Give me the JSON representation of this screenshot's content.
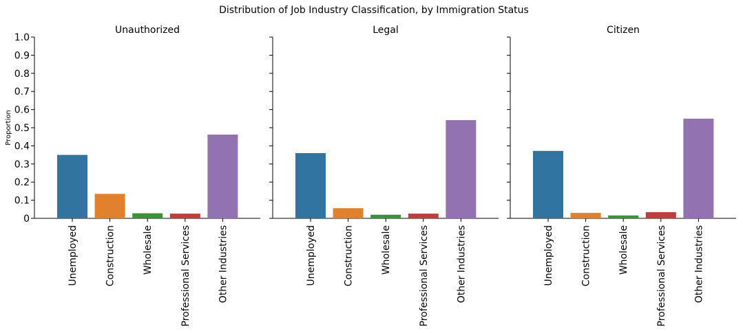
{
  "figure": {
    "suptitle": "Distribution of Job Industry Classification, by Immigration Status",
    "ylabel": "Proportion",
    "yticks": [
      "0",
      "0.1",
      "0.2",
      "0.3",
      "0.4",
      "0.5",
      "0.6",
      "0.7",
      "0.8",
      "0.9",
      "1.0"
    ]
  },
  "chart_data": [
    {
      "type": "bar",
      "title": "Unauthorized",
      "categories": [
        "Unemployed",
        "Construction",
        "Wholesale",
        "Professional Services",
        "Other Industries"
      ],
      "values": [
        0.35,
        0.135,
        0.028,
        0.026,
        0.462
      ],
      "ylim": [
        0,
        1.0
      ],
      "ylabel": "Proportion",
      "colors": [
        "#3274a1",
        "#e1812c",
        "#3a923a",
        "#c03d3e",
        "#9372b2"
      ],
      "grid": false
    },
    {
      "type": "bar",
      "title": "Legal",
      "categories": [
        "Unemployed",
        "Construction",
        "Wholesale",
        "Professional Services",
        "Other Industries"
      ],
      "values": [
        0.36,
        0.056,
        0.02,
        0.026,
        0.542
      ],
      "ylim": [
        0,
        1.0
      ],
      "colors": [
        "#3274a1",
        "#e1812c",
        "#3a923a",
        "#c03d3e",
        "#9372b2"
      ],
      "grid": false
    },
    {
      "type": "bar",
      "title": "Citizen",
      "categories": [
        "Unemployed",
        "Construction",
        "Wholesale",
        "Professional Services",
        "Other Industries"
      ],
      "values": [
        0.372,
        0.03,
        0.016,
        0.034,
        0.55
      ],
      "ylim": [
        0,
        1.0
      ],
      "colors": [
        "#3274a1",
        "#e1812c",
        "#3a923a",
        "#c03d3e",
        "#9372b2"
      ],
      "grid": false
    }
  ]
}
